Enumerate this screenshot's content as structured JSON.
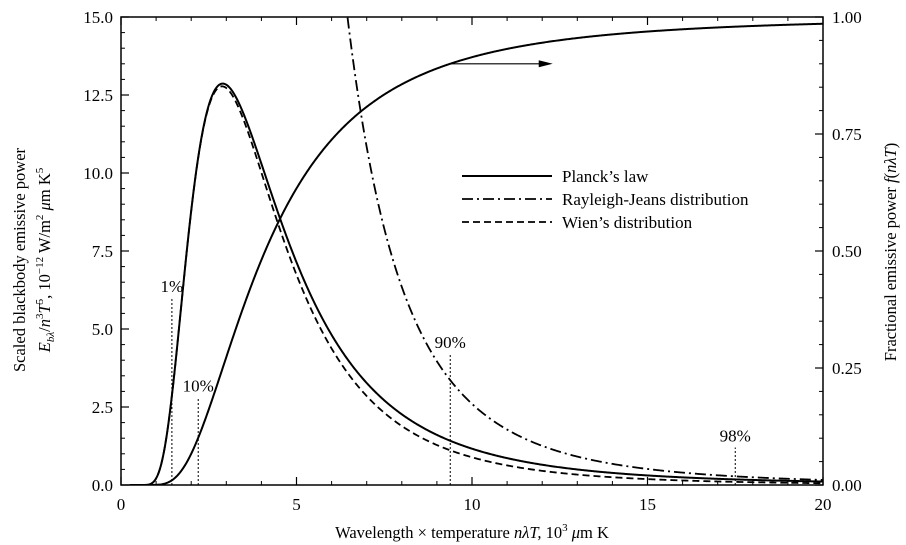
{
  "chart_data": {
    "type": "line",
    "title": "",
    "x": {
      "label": "Wavelength × temperature  nλT, 10³ μm K",
      "label_parts": {
        "pre": "Wavelength",
        "times": "×",
        "mid": "temperature",
        "n": "n",
        "lambda": "λ",
        "T": "T,",
        "ten": "10",
        "exp": "3",
        "mu": "μ",
        "unit": "m K"
      },
      "range": [
        0,
        20
      ],
      "ticks": [
        0,
        5,
        10,
        15,
        20
      ],
      "tick_labels": [
        "0",
        "5",
        "10",
        "15",
        "20"
      ]
    },
    "y_left": {
      "label_line1": "Scaled blackbody emissive power",
      "label_line2_parts": {
        "E": "E",
        "sub": "bλ",
        "slash": "/",
        "n": "n",
        "nexp": "3",
        "T": "T",
        "Texp": "5",
        "comma": ", 10",
        "exp": "−12",
        "w": " W/m",
        "m2": "2",
        "mu": " μ",
        "mk": "m K",
        "k5": "5"
      },
      "range": [
        0,
        15
      ],
      "ticks": [
        0,
        2.5,
        5,
        7.5,
        10,
        12.5,
        15
      ],
      "tick_labels": [
        "0.0",
        "2.5",
        "5.0",
        "7.5",
        "10.0",
        "12.5",
        "15.0"
      ]
    },
    "y_right": {
      "label_parts": {
        "text": "Fractional emissive power  ",
        "f": "f",
        "open": "(",
        "n": "n",
        "lambda": "λ",
        "T": "T",
        "close": ")"
      },
      "range": [
        0,
        1
      ],
      "ticks": [
        0,
        0.25,
        0.5,
        0.75,
        1.0
      ],
      "tick_labels": [
        "0.00",
        "0.25",
        "0.50",
        "0.75",
        "1.00"
      ]
    },
    "series": [
      {
        "name": "Planck’s law",
        "style": "solid",
        "axis": "left",
        "formula": "planck"
      },
      {
        "name": "Rayleigh-Jeans distribution",
        "style": "dashdot",
        "axis": "left",
        "formula": "rayleigh_jeans"
      },
      {
        "name": "Wien’s distribution",
        "style": "dashed",
        "axis": "left",
        "formula": "wien"
      },
      {
        "name": "",
        "style": "solid",
        "axis": "right",
        "formula": "fraction"
      }
    ],
    "percent_markers": [
      {
        "label": "1%",
        "x": 1.45,
        "y_top": 6.0
      },
      {
        "label": "10%",
        "x": 2.2,
        "y_top": 2.8
      },
      {
        "label": "90%",
        "x": 9.38,
        "y_top": 4.2
      },
      {
        "label": "98%",
        "x": 17.5,
        "y_top": 1.2
      }
    ],
    "arrow": {
      "x_start": 9.4,
      "x_end": 12.3,
      "y_right": 0.9
    },
    "legend": {
      "position": "center-right"
    },
    "grid": false,
    "colors": {
      "lines": "#000000",
      "background": "#ffffff"
    }
  }
}
